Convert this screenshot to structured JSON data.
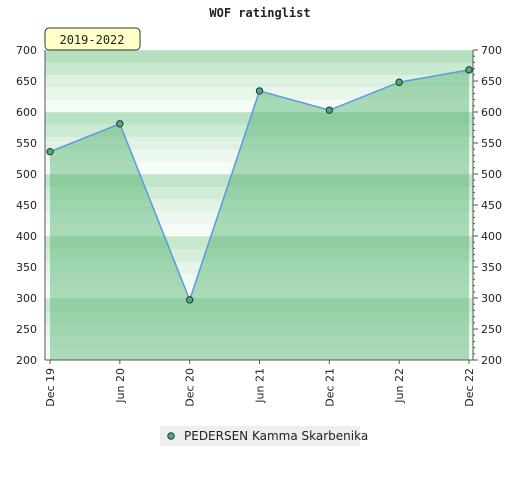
{
  "chart_data": {
    "type": "line",
    "title": "WOF ratinglist",
    "annotation": "2019-2022",
    "categories": [
      "Dec 19",
      "Jun 20",
      "Dec 20",
      "Jun 21",
      "Dec 21",
      "Jun 22",
      "Dec 22"
    ],
    "series": [
      {
        "name": "PEDERSEN Kamma Skarbenika",
        "color": "#5a9be0",
        "marker_color": "#4caf6a",
        "values": [
          536,
          581,
          297,
          634,
          603,
          648,
          668
        ]
      }
    ],
    "ylim": [
      200,
      700
    ],
    "yticks": [
      200,
      250,
      300,
      350,
      400,
      450,
      500,
      550,
      600,
      650,
      700
    ],
    "grid": true
  }
}
